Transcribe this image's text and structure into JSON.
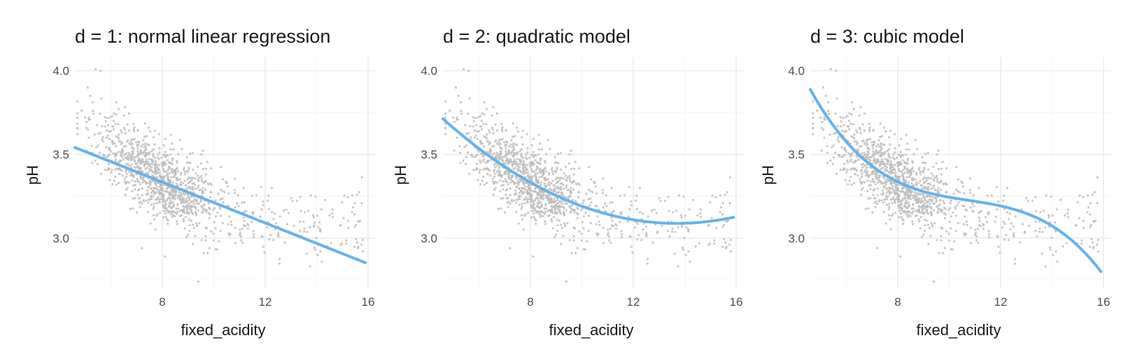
{
  "colors": {
    "fit_line": "#63b3ed",
    "points": "#bdbdbd",
    "grid": "#ebebeb"
  },
  "chart_data": [
    {
      "type": "scatter",
      "title": "d = 1: normal linear regression",
      "xlabel": "fixed_acidity",
      "ylabel": "pH",
      "xlim": [
        4.6,
        16.3
      ],
      "ylim": [
        2.7,
        4.08
      ],
      "x_ticks": [
        8,
        12,
        16
      ],
      "y_ticks": [
        3.0,
        3.5,
        4.0
      ],
      "y_tick_labels": [
        "3.0",
        "3.5",
        "4.0"
      ],
      "grid": true,
      "fit": {
        "degree": 1,
        "coefficients": [
          3.8224,
          -0.06098
        ],
        "x_range": [
          4.6,
          15.9
        ]
      }
    },
    {
      "type": "scatter",
      "title": "d = 2: quadratic model",
      "xlabel": "fixed_acidity",
      "ylabel": "pH",
      "xlim": [
        4.6,
        16.3
      ],
      "ylim": [
        2.7,
        4.08
      ],
      "x_ticks": [
        8,
        12,
        16
      ],
      "y_ticks": [
        3.0,
        3.5,
        4.0
      ],
      "y_tick_labels": [
        "3.0",
        "3.5",
        "4.0"
      ],
      "grid": true,
      "fit": {
        "degree": 2,
        "coefficients": [
          4.5057,
          -0.2071,
          0.007563
        ],
        "x_range": [
          4.6,
          15.9
        ]
      }
    },
    {
      "type": "scatter",
      "title": "d = 3: cubic model",
      "xlabel": "fixed_acidity",
      "ylabel": "pH",
      "xlim": [
        4.6,
        16.3
      ],
      "ylim": [
        2.7,
        4.08
      ],
      "x_ticks": [
        8,
        12,
        16
      ],
      "y_ticks": [
        3.0,
        3.5,
        4.0
      ],
      "y_tick_labels": [
        "3.0",
        "3.5",
        "4.0"
      ],
      "grid": true,
      "fit": {
        "degree": 3,
        "coefficients": [
          6.2474,
          -0.7965,
          0.07193,
          -0.002231
        ],
        "x_range": [
          4.6,
          15.9
        ]
      }
    }
  ]
}
